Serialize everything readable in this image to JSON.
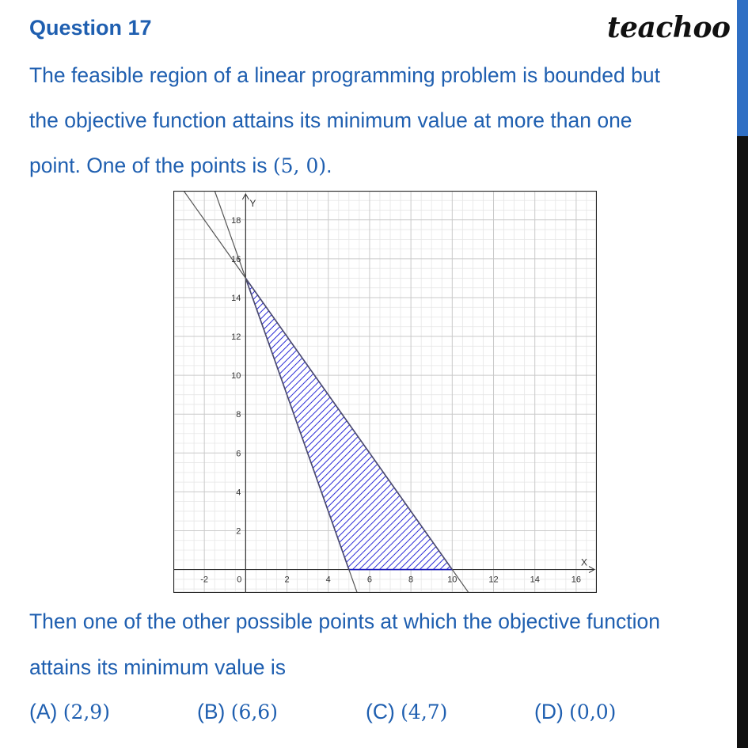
{
  "header": {
    "question_title": "Question 17",
    "brand": "teachoo"
  },
  "question": {
    "line1": "The feasible region of a linear programming problem is bounded but",
    "line2": "the objective function attains its minimum value at more than one",
    "line3_text": "point. One of the points is ",
    "line3_point": "(5, 0)",
    "line3_end": ".",
    "after_line1": "Then one of the other possible points at which the objective function",
    "after_line2": "attains its minimum value is"
  },
  "options": [
    {
      "label": "(A) ",
      "value": "(2,9)"
    },
    {
      "label": "(B) ",
      "value": "(6,6)"
    },
    {
      "label": "(C) ",
      "value": "(4,7)"
    },
    {
      "label": "(D) ",
      "value": "(0,0)"
    }
  ],
  "graph": {
    "x_axis_label": "X",
    "y_axis_label": "Y",
    "x_ticks": [
      {
        "value": -2,
        "label": "-2"
      },
      {
        "value": 0,
        "label": "0"
      },
      {
        "value": 2,
        "label": "2"
      },
      {
        "value": 4,
        "label": "4"
      },
      {
        "value": 6,
        "label": "6"
      },
      {
        "value": 8,
        "label": "8"
      },
      {
        "value": 10,
        "label": "10"
      },
      {
        "value": 12,
        "label": "12"
      },
      {
        "value": 14,
        "label": "14"
      },
      {
        "value": 16,
        "label": "16"
      }
    ],
    "y_ticks": [
      {
        "value": 2,
        "label": "2"
      },
      {
        "value": 4,
        "label": "4"
      },
      {
        "value": 6,
        "label": "6"
      },
      {
        "value": 8,
        "label": "8"
      },
      {
        "value": 10,
        "label": "10"
      },
      {
        "value": 12,
        "label": "12"
      },
      {
        "value": 14,
        "label": "14"
      },
      {
        "value": 16,
        "label": "16"
      },
      {
        "value": 18,
        "label": "18"
      }
    ],
    "x_range": [
      -3.5,
      17
    ],
    "y_range": [
      -1.2,
      19.5
    ],
    "feasible_region_vertices": [
      [
        0,
        15
      ],
      [
        5,
        0
      ],
      [
        10,
        0
      ]
    ],
    "lines": [
      {
        "through": [
          [
            0,
            15
          ],
          [
            5,
            0
          ]
        ]
      },
      {
        "through": [
          [
            0,
            15
          ],
          [
            10,
            0
          ]
        ]
      }
    ],
    "region_fill": "#2b2bd6",
    "region_outline": "#1a1ab8"
  }
}
